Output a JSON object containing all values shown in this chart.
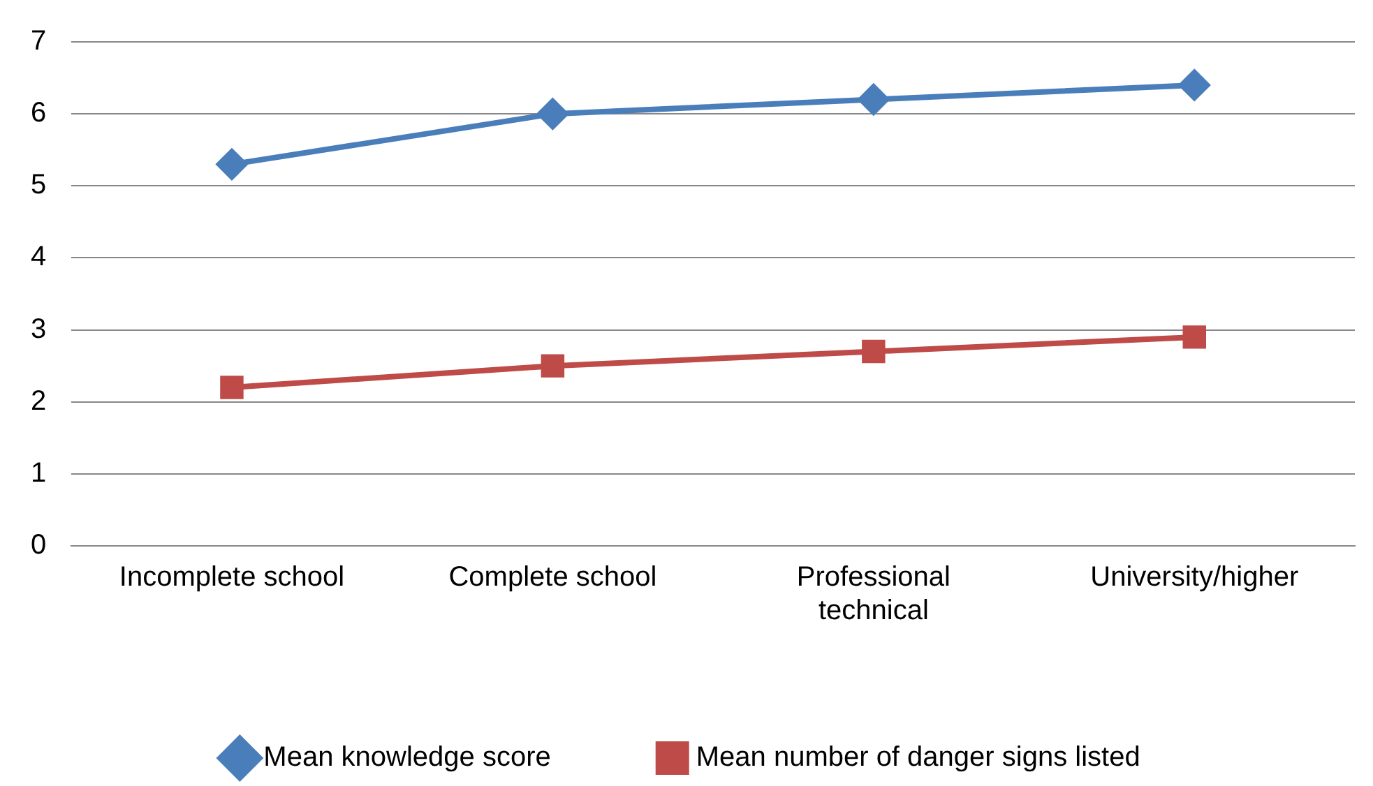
{
  "chart_data": {
    "type": "line",
    "categories": [
      "Incomplete school",
      "Complete school",
      "Professional technical",
      "University/higher"
    ],
    "series": [
      {
        "name": "Mean knowledge score",
        "color": "#4a7ebb",
        "values": [
          5.3,
          6.0,
          6.2,
          6.4
        ],
        "marker": "diamond"
      },
      {
        "name": "Mean number of danger signs listed",
        "color": "#be4b48",
        "values": [
          2.2,
          2.5,
          2.7,
          2.9
        ],
        "marker": "square"
      }
    ],
    "ylim": [
      0,
      7
    ],
    "yticks": [
      0,
      1,
      2,
      3,
      4,
      5,
      6,
      7
    ],
    "grid": "y",
    "legend": "bottom",
    "line_style": "solid"
  }
}
